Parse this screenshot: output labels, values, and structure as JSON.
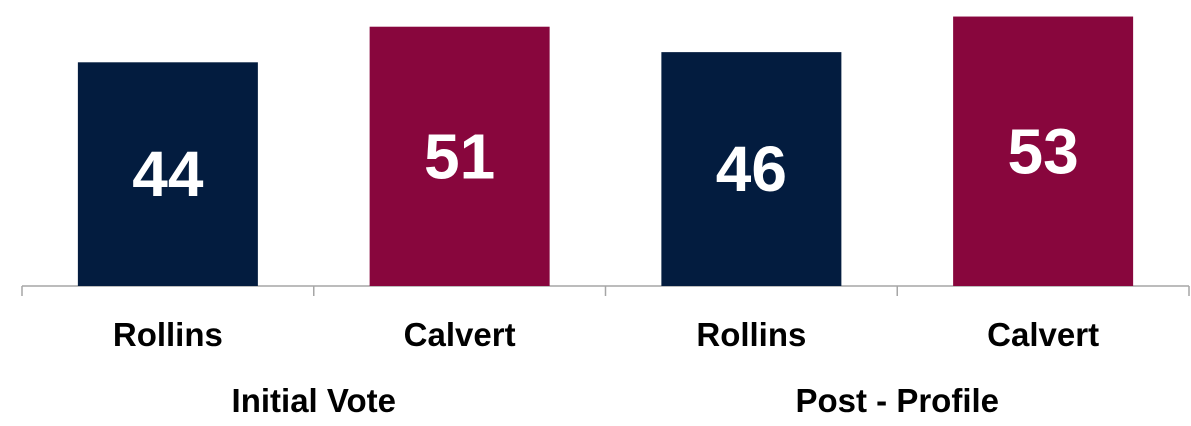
{
  "chart_data": {
    "type": "bar",
    "groups": [
      {
        "label": "Initial Vote",
        "bars": [
          {
            "category": "Rollins",
            "value": 44,
            "color": "#031C3F"
          },
          {
            "category": "Calvert",
            "value": 51,
            "color": "#88063D"
          }
        ]
      },
      {
        "label": "Post - Profile",
        "bars": [
          {
            "category": "Rollins",
            "value": 46,
            "color": "#031C3F"
          },
          {
            "category": "Calvert",
            "value": 53,
            "color": "#88063D"
          }
        ]
      }
    ],
    "title": "",
    "xlabel": "",
    "ylabel": "",
    "ylim": [
      0,
      53.5
    ],
    "grid": false,
    "legend": "none",
    "data_label_color": "#FFFFFF",
    "axis_color": "#A6A6A6"
  }
}
